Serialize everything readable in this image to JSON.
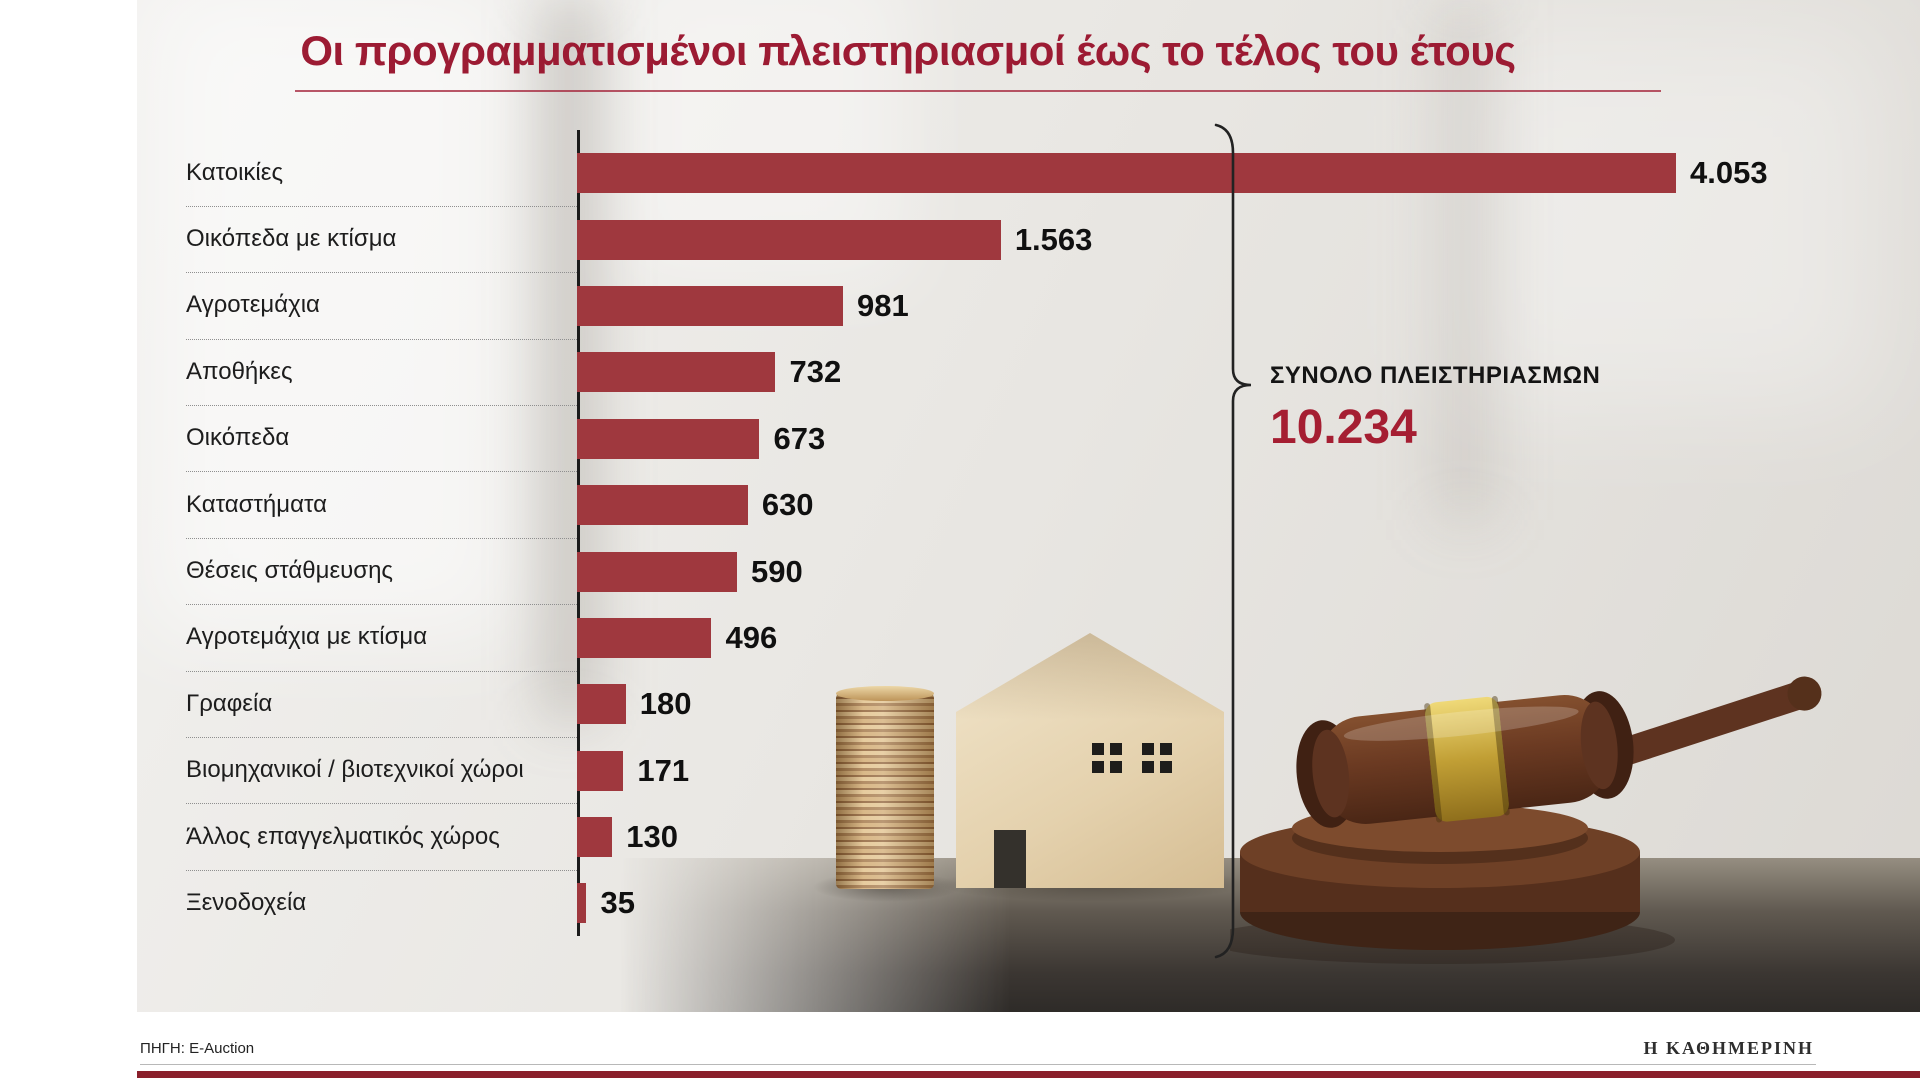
{
  "title": "Οι προγραμματισμένοι πλειστηριασμοί έως το τέλος του έτους",
  "summary": {
    "label": "ΣΥΝΟΛΟ ΠΛΕΙΣΤΗΡΙΑΣΜΩΝ",
    "value": "10.234"
  },
  "footer": {
    "source": "ΠΗΓΗ: E-Auction",
    "brand": "Η ΚΑΘΗΜΕΡΙΝΗ"
  },
  "colors": {
    "bar": "#9f383e",
    "title": "#9c1b33",
    "total_value": "#a51e32",
    "bottom_bar": "#8a1f2b",
    "axis": "#1b1b1b"
  },
  "chart_data": {
    "type": "bar",
    "orientation": "horizontal",
    "title": "Οι προγραμματισμένοι πλειστηριασμοί έως το τέλος του έτους",
    "categories": [
      "Κατοικίες",
      "Οικόπεδα με κτίσμα",
      "Αγροτεμάχια",
      "Αποθήκες",
      "Οικόπεδα",
      "Καταστήματα",
      "Θέσεις στάθμευσης",
      "Αγροτεμάχια με κτίσμα",
      "Γραφεία",
      "Βιομηχανικοί / βιοτεχνικοί χώροι",
      "Άλλος επαγγελματικός χώρος",
      "Ξενοδοχεία"
    ],
    "values": [
      4053,
      1563,
      981,
      732,
      673,
      630,
      590,
      496,
      180,
      171,
      130,
      35
    ],
    "value_labels": [
      "4.053",
      "1.563",
      "981",
      "732",
      "673",
      "630",
      "590",
      "496",
      "180",
      "171",
      "130",
      "35"
    ],
    "total": 10234,
    "xlim": [
      0,
      4300
    ],
    "grid": false,
    "value_label_position": "end"
  }
}
